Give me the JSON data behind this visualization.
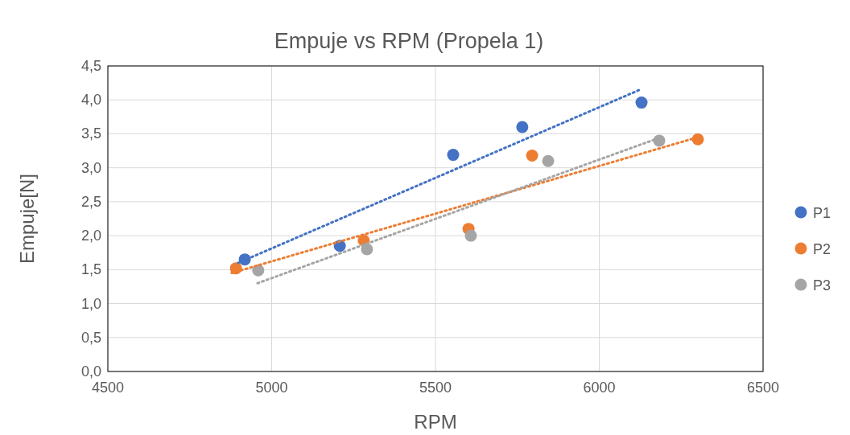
{
  "chart_data": {
    "type": "scatter",
    "title": "Empuje vs RPM (Propela 1)",
    "xlabel": "RPM",
    "ylabel": "Empuje[N]",
    "xlim": [
      4500,
      6500
    ],
    "xticks": [
      4500,
      5000,
      5500,
      6000,
      6500
    ],
    "ylim": [
      0,
      4.5
    ],
    "yticks": [
      {
        "value": 0,
        "label": "0,0"
      },
      {
        "value": 0.5,
        "label": "0,5"
      },
      {
        "value": 1,
        "label": "1,0"
      },
      {
        "value": 1.5,
        "label": "1,5"
      },
      {
        "value": 2,
        "label": "2,0"
      },
      {
        "value": 2.5,
        "label": "2,5"
      },
      {
        "value": 3,
        "label": "3,0"
      },
      {
        "value": 3.5,
        "label": "3,5"
      },
      {
        "value": 4,
        "label": "4,0"
      },
      {
        "value": 4.5,
        "label": "4,5"
      }
    ],
    "grid": true,
    "legend": "right",
    "marker": "circle",
    "series": [
      {
        "name": "P1",
        "color": "#4472c4",
        "x": [
          4918,
          5208,
          5554,
          5765,
          6129
        ],
        "values": [
          1.65,
          1.85,
          3.19,
          3.6,
          3.96
        ]
      },
      {
        "name": "P2",
        "color": "#ed7d31",
        "x": [
          4891,
          5281,
          5601,
          5795,
          6301
        ],
        "values": [
          1.52,
          1.93,
          2.1,
          3.18,
          3.42
        ]
      },
      {
        "name": "P3",
        "color": "#a5a5a5",
        "x": [
          4959,
          5291,
          5608,
          5844,
          6183
        ],
        "values": [
          1.49,
          1.8,
          2.0,
          3.1,
          3.4
        ]
      },
      {
        "type": "line",
        "line_style": "dotted",
        "marker": "none",
        "color": "#4472c4",
        "x": [
          4898,
          6129
        ],
        "values": [
          1.6,
          4.16
        ]
      },
      {
        "type": "line",
        "line_style": "dotted",
        "marker": "none",
        "color": "#ed7d31",
        "x": [
          4878,
          6301
        ],
        "values": [
          1.45,
          3.45
        ]
      },
      {
        "type": "line",
        "line_style": "dotted",
        "marker": "none",
        "color": "#a5a5a5",
        "x": [
          4957,
          6183
        ],
        "values": [
          1.3,
          3.44
        ]
      }
    ]
  }
}
